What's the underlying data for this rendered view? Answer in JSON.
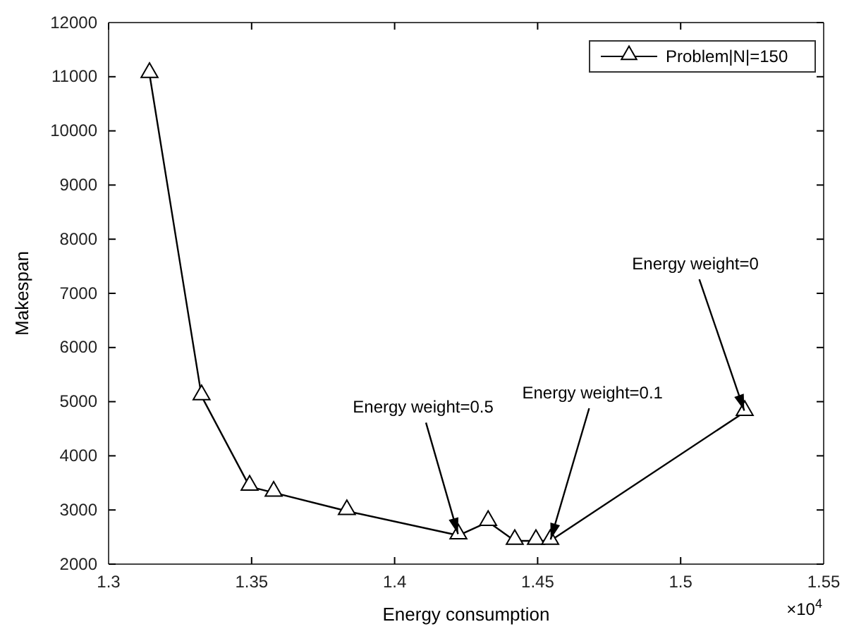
{
  "chart_data": {
    "type": "line",
    "xlabel": "Energy consumption",
    "ylabel": "Makespan",
    "x": [
      1.3143,
      1.3325,
      1.3493,
      1.3577,
      1.3833,
      1.4223,
      1.4327,
      1.442,
      1.4494,
      1.4544,
      1.5224
    ],
    "series": [
      {
        "name": "Problem|N|=150",
        "color": "#000000",
        "values": [
          11050,
          5100,
          3430,
          3320,
          2980,
          2530,
          2780,
          2430,
          2430,
          2430,
          4810
        ]
      }
    ],
    "xlim": [
      1.3,
      1.55
    ],
    "xticks": [
      1.3,
      1.35,
      1.4,
      1.45,
      1.5,
      1.55
    ],
    "ylim": [
      2000,
      12000
    ],
    "yticks": [
      2000,
      3000,
      4000,
      5000,
      6000,
      7000,
      8000,
      9000,
      10000,
      11000,
      12000
    ],
    "annotations": [
      {
        "text": "Energy weight=0.5",
        "x": 1.4223,
        "y": 2530
      },
      {
        "text": "Energy weight=0.1",
        "x": 1.4544,
        "y": 2430
      },
      {
        "text": "Energy weight=0",
        "x": 1.5224,
        "y": 4810
      },
      "×10$^{4}$"
    ],
    "marker": "triangle",
    "line_style": "solid",
    "grid": false,
    "legend": "top right"
  }
}
